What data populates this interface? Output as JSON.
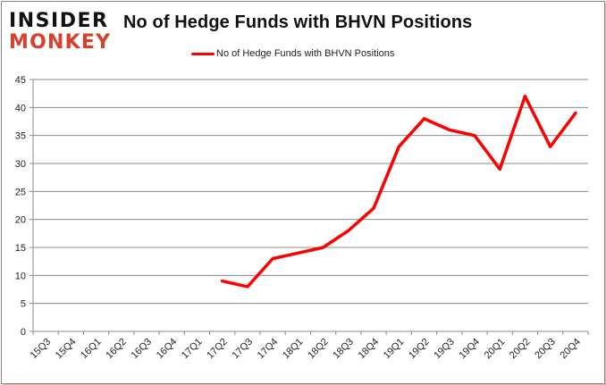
{
  "logo": {
    "line1": "INSIDER",
    "line2": "MONKEY"
  },
  "chart_data": {
    "type": "line",
    "title": "No of Hedge Funds with BHVN Positions",
    "xlabel": "",
    "ylabel": "",
    "categories": [
      "15Q3",
      "15Q4",
      "16Q1",
      "16Q2",
      "16Q3",
      "16Q4",
      "17Q1",
      "17Q2",
      "17Q3",
      "17Q4",
      "18Q1",
      "18Q2",
      "18Q3",
      "18Q4",
      "19Q1",
      "19Q2",
      "19Q3",
      "19Q4",
      "20Q1",
      "20Q2",
      "20Q3",
      "20Q4"
    ],
    "series": [
      {
        "name": "No of Hedge Funds with BHVN Positions",
        "color": "#ff0000",
        "values": [
          null,
          null,
          null,
          null,
          null,
          null,
          null,
          9,
          8,
          13,
          14,
          15,
          18,
          22,
          33,
          38,
          36,
          35,
          29,
          42,
          33,
          39
        ]
      }
    ],
    "ylim": [
      0,
      45
    ],
    "yticks": [
      0,
      5,
      10,
      15,
      20,
      25,
      30,
      35,
      40,
      45
    ],
    "grid": true,
    "legend_position": "top"
  }
}
